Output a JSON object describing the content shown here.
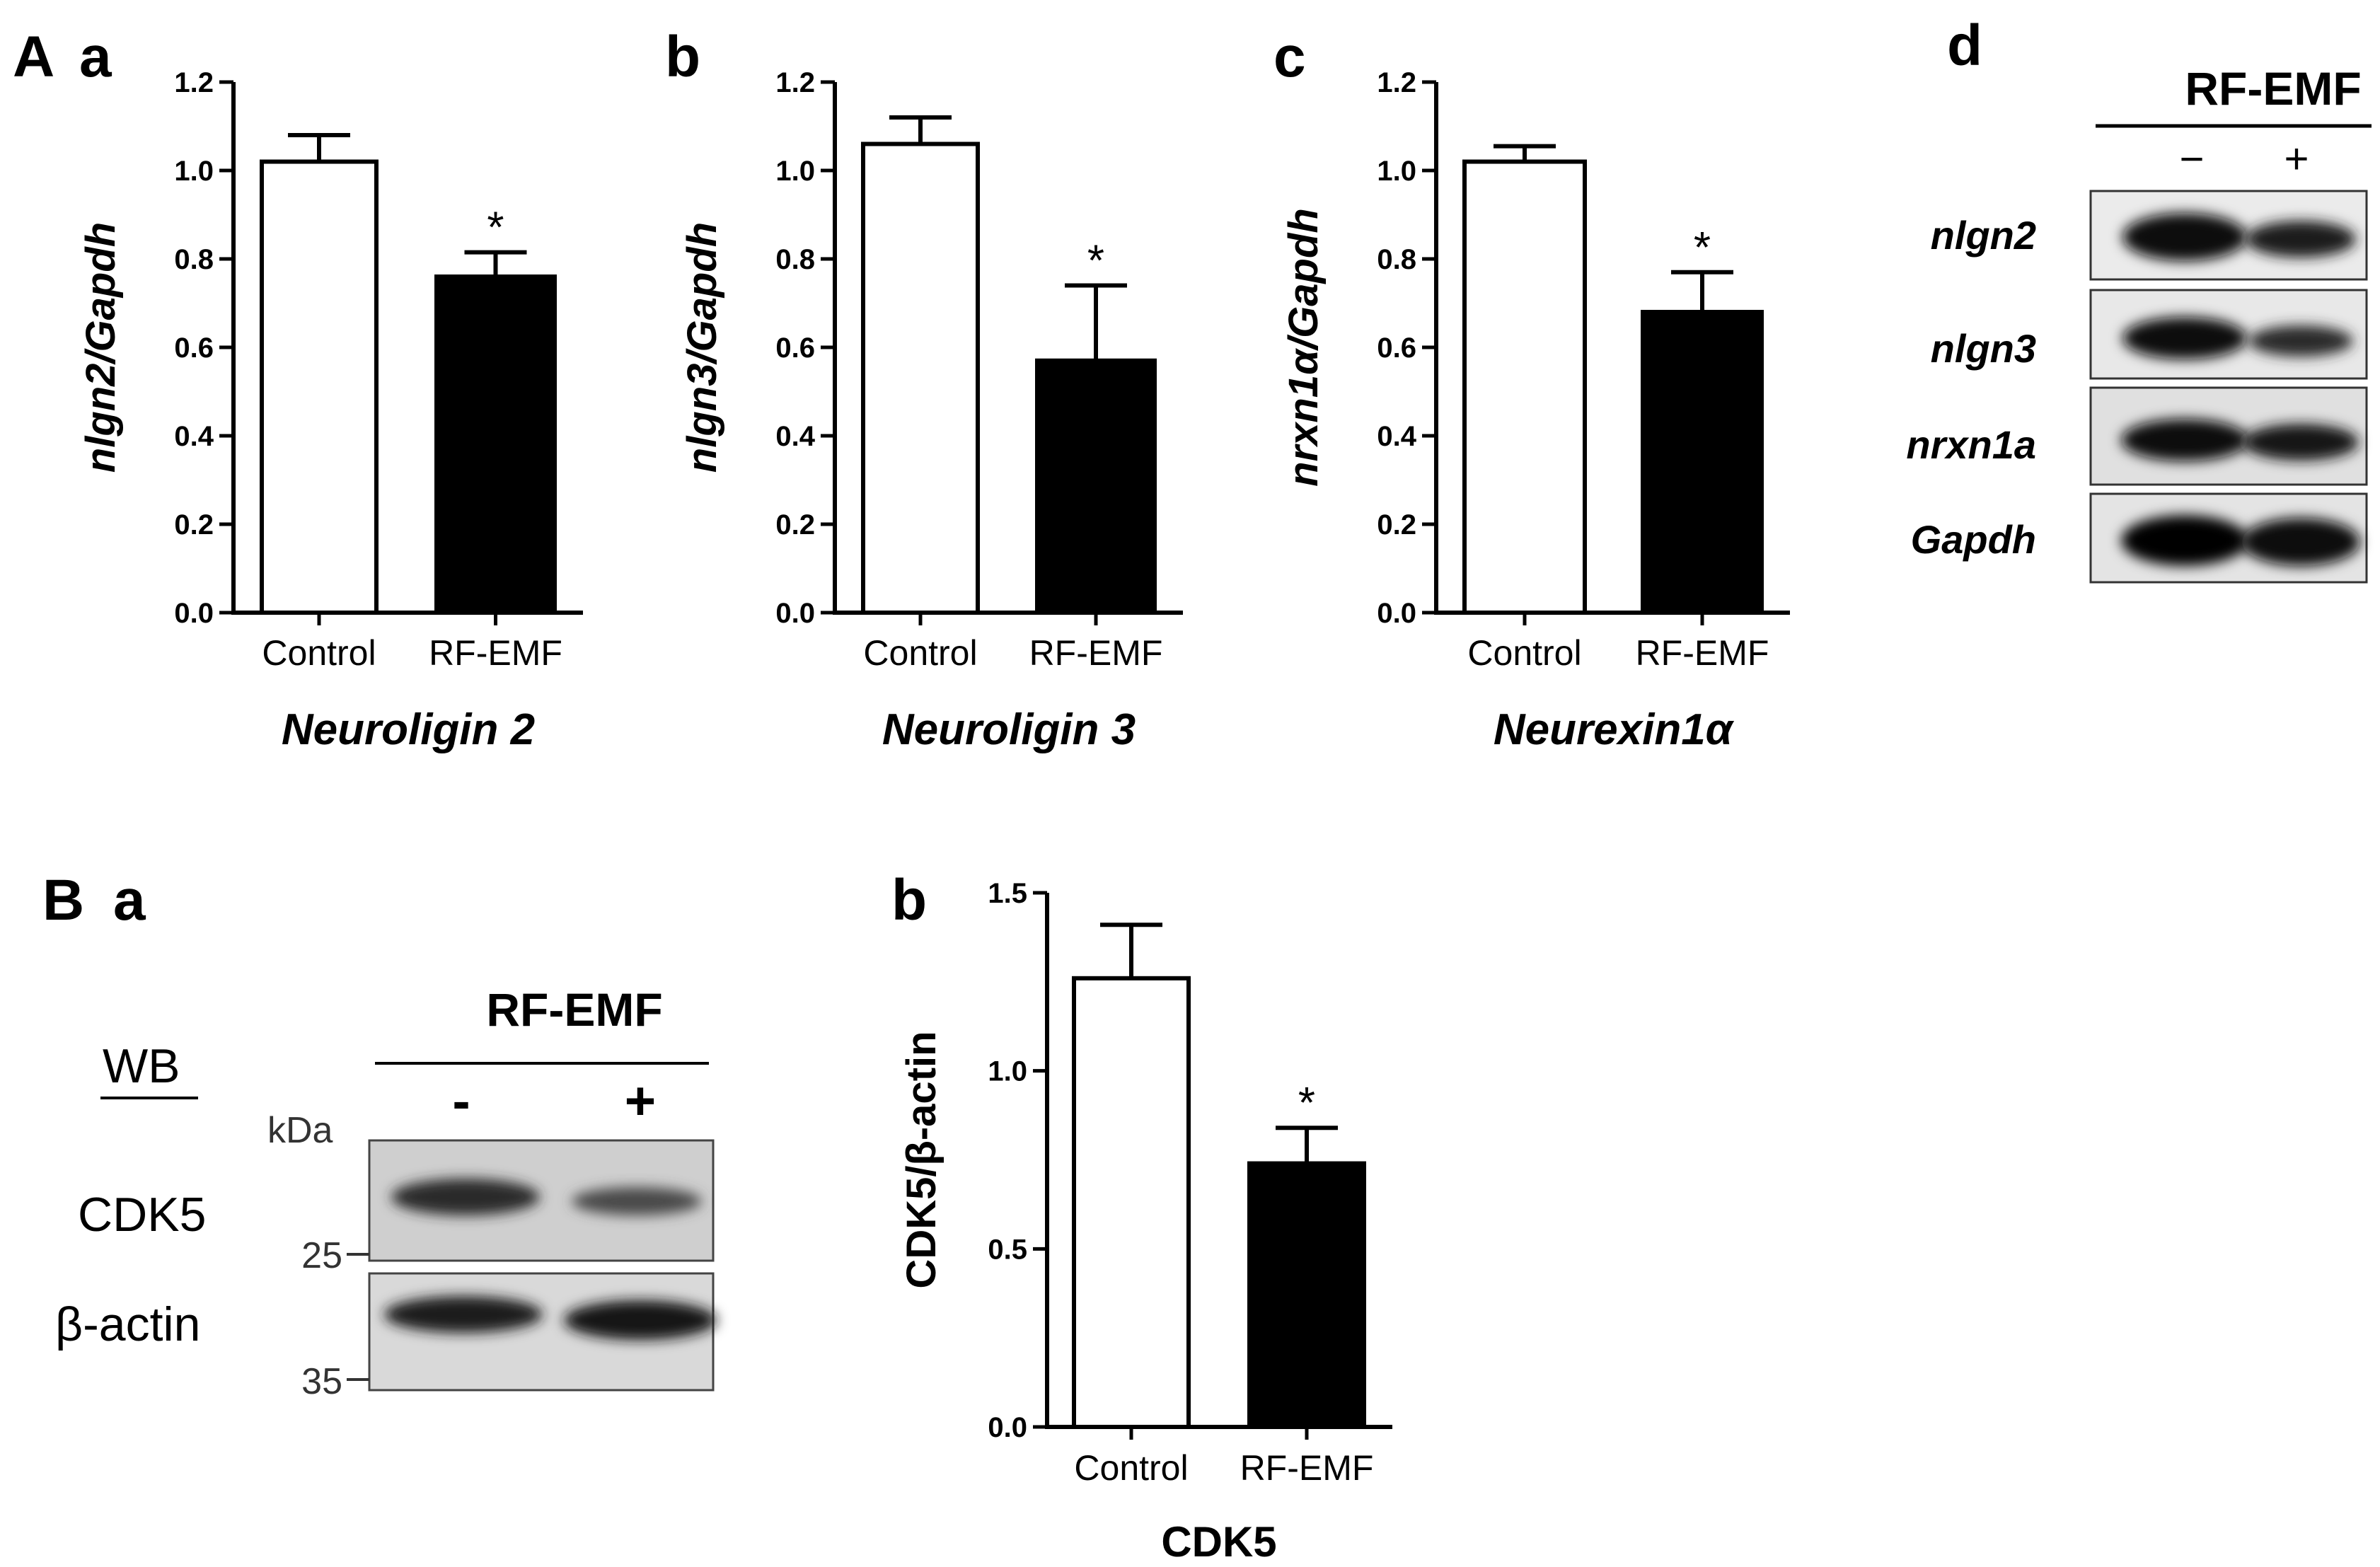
{
  "figure": {
    "panel_A": "A",
    "panel_B": "B",
    "sub_a": "a",
    "sub_b": "b",
    "sub_c": "c",
    "sub_d": "d",
    "sub_Ba": "a",
    "sub_Bb": "b"
  },
  "chart_data": [
    {
      "type": "bar",
      "panel": "Aa",
      "categories": [
        "Control",
        "RF-EMF"
      ],
      "values": [
        1.02,
        0.76
      ],
      "errors": [
        0.06,
        0.055
      ],
      "ylabel": "nlgn2/Gapdh",
      "xlabel": "Neuroligin 2",
      "ylim": [
        0,
        1.2
      ],
      "yticks": [
        "0.0",
        "0.2",
        "0.4",
        "0.6",
        "0.8",
        "1.0",
        "1.2"
      ],
      "significance": [
        "",
        "*"
      ],
      "fills": [
        "#ffffff",
        "#000000"
      ]
    },
    {
      "type": "bar",
      "panel": "Ab",
      "categories": [
        "Control",
        "RF-EMF"
      ],
      "values": [
        1.06,
        0.57
      ],
      "errors": [
        0.06,
        0.17
      ],
      "ylabel": "nlgn3/Gapdh",
      "xlabel": "Neuroligin 3",
      "ylim": [
        0,
        1.2
      ],
      "yticks": [
        "0.0",
        "0.2",
        "0.4",
        "0.6",
        "0.8",
        "1.0",
        "1.2"
      ],
      "significance": [
        "",
        "*"
      ],
      "fills": [
        "#ffffff",
        "#000000"
      ]
    },
    {
      "type": "bar",
      "panel": "Ac",
      "categories": [
        "Control",
        "RF-EMF"
      ],
      "values": [
        1.02,
        0.68
      ],
      "errors": [
        0.035,
        0.09
      ],
      "ylabel": "nrxn1α/Gapdh",
      "xlabel": "Neurexin1α",
      "ylim": [
        0,
        1.2
      ],
      "yticks": [
        "0.0",
        "0.2",
        "0.4",
        "0.6",
        "0.8",
        "1.0",
        "1.2"
      ],
      "significance": [
        "",
        "*"
      ],
      "fills": [
        "#ffffff",
        "#000000"
      ]
    },
    {
      "type": "bar",
      "panel": "Bb",
      "categories": [
        "Control",
        "RF-EMF"
      ],
      "values": [
        1.26,
        0.74
      ],
      "errors": [
        0.15,
        0.1
      ],
      "ylabel": "CDK5/β-actin",
      "xlabel": "CDK5",
      "ylim": [
        0,
        1.5
      ],
      "yticks": [
        "0.0",
        "0.5",
        "1.0",
        "1.5"
      ],
      "significance": [
        "",
        "*"
      ],
      "fills": [
        "#ffffff",
        "#000000"
      ]
    }
  ],
  "blot_d": {
    "header": "RF-EMF",
    "minus": "−",
    "plus": "+",
    "rows": [
      "nlgn2",
      "nlgn3",
      "nrxn1a",
      "Gapdh"
    ]
  },
  "blot_Ba": {
    "header": "RF-EMF",
    "wb": "WB",
    "kda": "kDa",
    "minus": "-",
    "plus": "+",
    "rows": [
      "CDK5",
      "β-actin"
    ],
    "markers": [
      "25",
      "35"
    ]
  }
}
